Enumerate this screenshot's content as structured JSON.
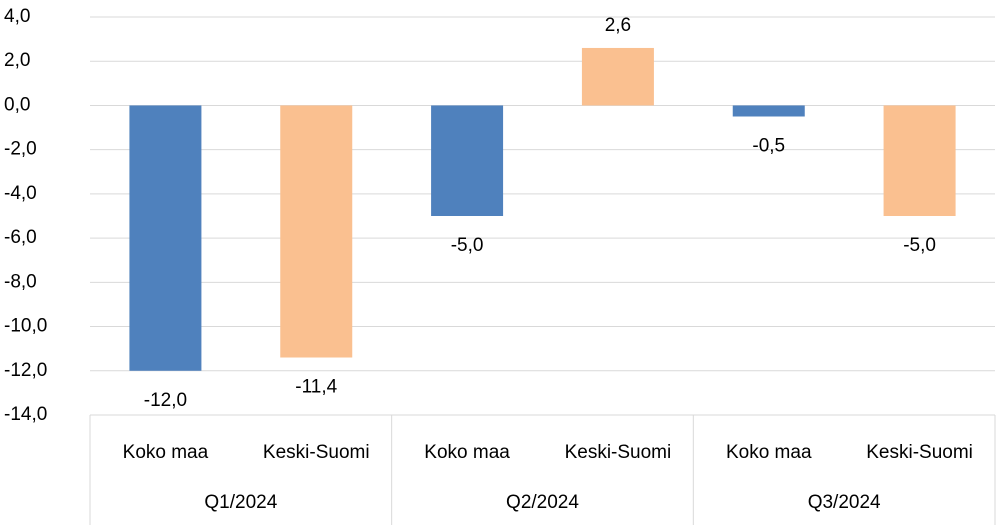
{
  "chart_data": {
    "type": "bar",
    "categories": [
      "Q1/2024",
      "Q2/2024",
      "Q3/2024"
    ],
    "series": [
      {
        "name": "Koko maa",
        "color": "#4f81bd",
        "values": [
          -12.0,
          -5.0,
          -0.5
        ],
        "value_labels": [
          "-12,0",
          "-5,0",
          "-0,5"
        ]
      },
      {
        "name": "Keski-Suomi",
        "color": "#fac090",
        "values": [
          -11.4,
          2.6,
          -5.0
        ],
        "value_labels": [
          "-11,4",
          "2,6",
          "-5,0"
        ]
      }
    ],
    "ylim": [
      -14,
      4
    ],
    "yticks": [
      {
        "value": -14,
        "label": "-14,0"
      },
      {
        "value": -12,
        "label": "-12,0"
      },
      {
        "value": -10,
        "label": "-10,0"
      },
      {
        "value": -8,
        "label": "-8,0"
      },
      {
        "value": -6,
        "label": "-6,0"
      },
      {
        "value": -4,
        "label": "-4,0"
      },
      {
        "value": -2,
        "label": "-2,0"
      },
      {
        "value": 0,
        "label": "0,0"
      },
      {
        "value": 2,
        "label": "2,0"
      },
      {
        "value": 4,
        "label": "4,0"
      }
    ],
    "grid": true
  }
}
